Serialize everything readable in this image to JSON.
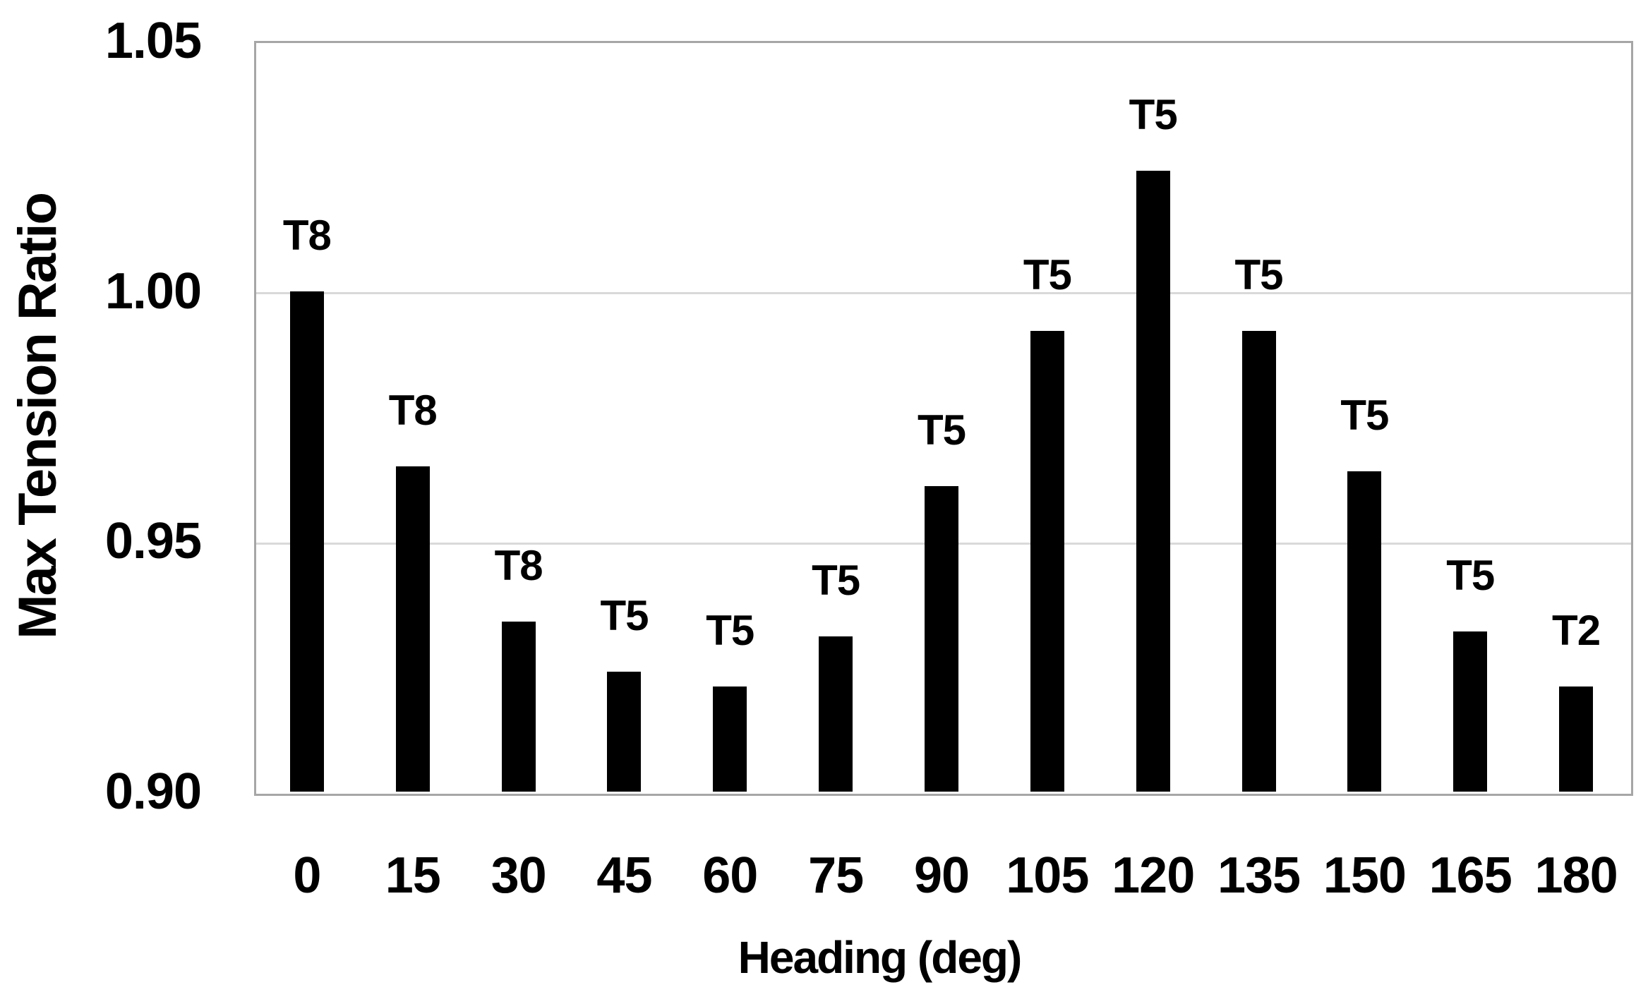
{
  "chart_data": {
    "type": "bar",
    "title": "",
    "xlabel": "Heading (deg)",
    "ylabel": "Max Tension Ratio",
    "categories": [
      0,
      15,
      30,
      45,
      60,
      75,
      90,
      105,
      120,
      135,
      150,
      165,
      180
    ],
    "xtick_labels": [
      "0",
      "15",
      "30",
      "45",
      "60",
      "75",
      "90",
      "105",
      "120",
      "135",
      "150",
      "165",
      "180"
    ],
    "values": [
      1.0,
      0.965,
      0.934,
      0.924,
      0.921,
      0.931,
      0.961,
      0.992,
      1.024,
      0.992,
      0.964,
      0.932,
      0.921
    ],
    "bar_labels": [
      "T8",
      "T8",
      "T8",
      "T5",
      "T5",
      "T5",
      "T5",
      "T5",
      "T5",
      "T5",
      "T5",
      "T5",
      "T2"
    ],
    "ylim": [
      0.9,
      1.05
    ],
    "yticks": [
      0.9,
      0.95,
      1.0,
      1.05
    ],
    "ytick_labels": [
      "0.90",
      "0.95",
      "1.00",
      "1.05"
    ],
    "grid": "horizontal-gridlines-at-interior-ticks",
    "legend": "none",
    "series_name": "Max Tension Ratio",
    "bar_color": "#000000",
    "gridline_color": "#d9d9d9",
    "plot_border_color": "#a6a6a6",
    "background_color": "#ffffff",
    "text_color": "#000000"
  }
}
